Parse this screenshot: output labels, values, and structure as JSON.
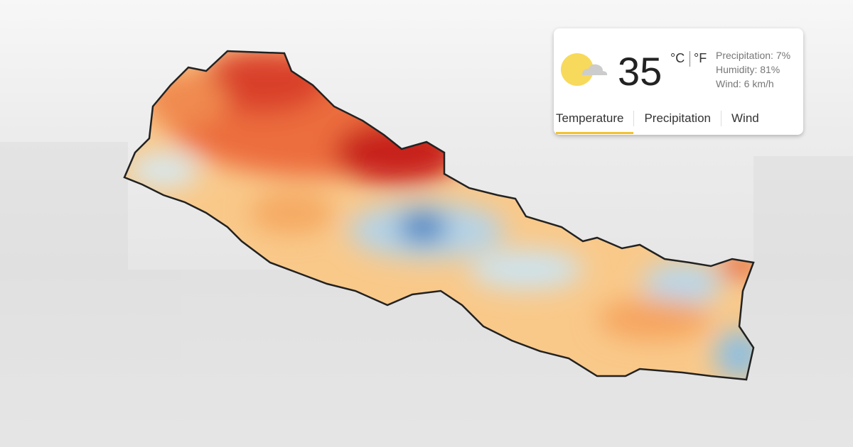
{
  "widget": {
    "temperature": 35,
    "unit_c": "°C",
    "unit_f": "°F",
    "details": [
      "Precipitation: 7%",
      "Humidity: 81%",
      "Wind: 6 km/h"
    ],
    "tabs": [
      "Temperature",
      "Precipitation",
      "Wind"
    ]
  }
}
